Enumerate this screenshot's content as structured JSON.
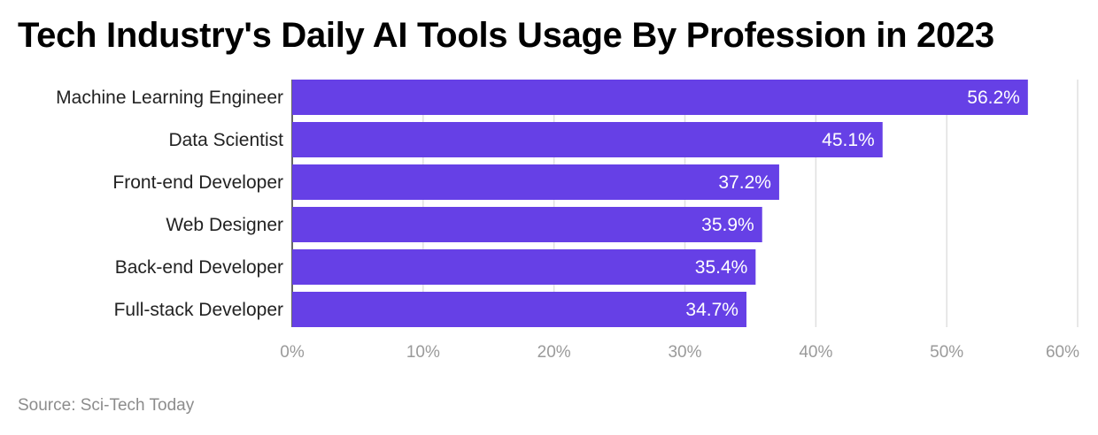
{
  "chart_data": {
    "type": "bar",
    "orientation": "horizontal",
    "title": "Tech Industry's Daily AI Tools Usage By Profession in 2023",
    "categories": [
      "Machine Learning Engineer",
      "Data Scientist",
      "Front-end Developer",
      "Web Designer",
      "Back-end Developer",
      "Full-stack Developer"
    ],
    "values": [
      56.2,
      45.1,
      37.2,
      35.9,
      35.4,
      34.7
    ],
    "value_labels": [
      "56.2%",
      "45.1%",
      "37.2%",
      "35.9%",
      "35.4%",
      "34.7%"
    ],
    "xlim": [
      0,
      60
    ],
    "xticks": [
      0,
      10,
      20,
      30,
      40,
      50,
      60
    ],
    "xtick_labels": [
      "0%",
      "10%",
      "20%",
      "30%",
      "40%",
      "50%",
      "60%"
    ],
    "xlabel": "",
    "ylabel": "",
    "grid": true,
    "bar_color": "#6640e6",
    "grid_color": "#e0e0e0"
  },
  "source": "Source: Sci-Tech Today"
}
